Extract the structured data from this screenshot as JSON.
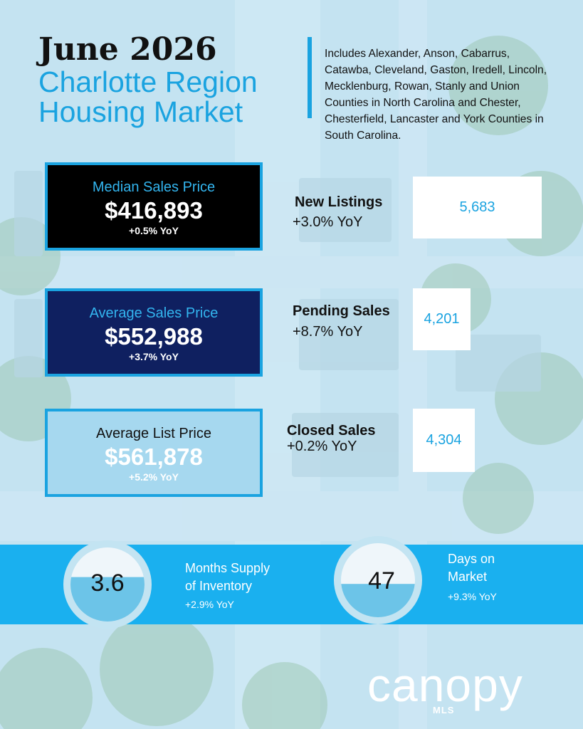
{
  "header": {
    "title": "June 2026",
    "subtitle_line1": "Charlotte Region",
    "subtitle_line2": "Housing Market",
    "description": "Includes Alexander, Anson, Cabarrus, Catawba, Cleveland, Gaston, Iredell, Lincoln, Mecklenburg, Rowan, Stanly and Union Counties in North Carolina and Chester, Chesterfield, Lancaster and York Counties in South Carolina."
  },
  "prices": [
    {
      "label": "Median Sales Price",
      "value": "$416,893",
      "yoy": "+0.5% YoY"
    },
    {
      "label": "Average Sales Price",
      "value": "$552,988",
      "yoy": "+3.7% YoY"
    },
    {
      "label": "Average List Price",
      "value": "$561,878",
      "yoy": "+5.2% YoY"
    }
  ],
  "stats": [
    {
      "title": "New Listings",
      "yoy": "+3.0% YoY",
      "value": "5,683"
    },
    {
      "title": "Pending Sales",
      "yoy": "+8.7% YoY",
      "value": "4,201"
    },
    {
      "title": "Closed Sales",
      "yoy": "+0.2% YoY",
      "value": "4,304"
    }
  ],
  "gauges": [
    {
      "value": "3.6",
      "title_line1": "Months Supply",
      "title_line2": "of Inventory",
      "yoy": "+2.9% YoY",
      "fill": 0.6
    },
    {
      "value": "47",
      "title_line1": "Days on",
      "title_line2": "Market",
      "yoy": "+9.3% YoY",
      "fill": 0.45
    }
  ],
  "logo": {
    "name": "canopy",
    "sub": "MLS"
  },
  "colors": {
    "accent": "#1aa3e0",
    "band": "#1ab0ef",
    "navy": "#0f2060",
    "black": "#000000",
    "light": "#a6d8ef"
  }
}
